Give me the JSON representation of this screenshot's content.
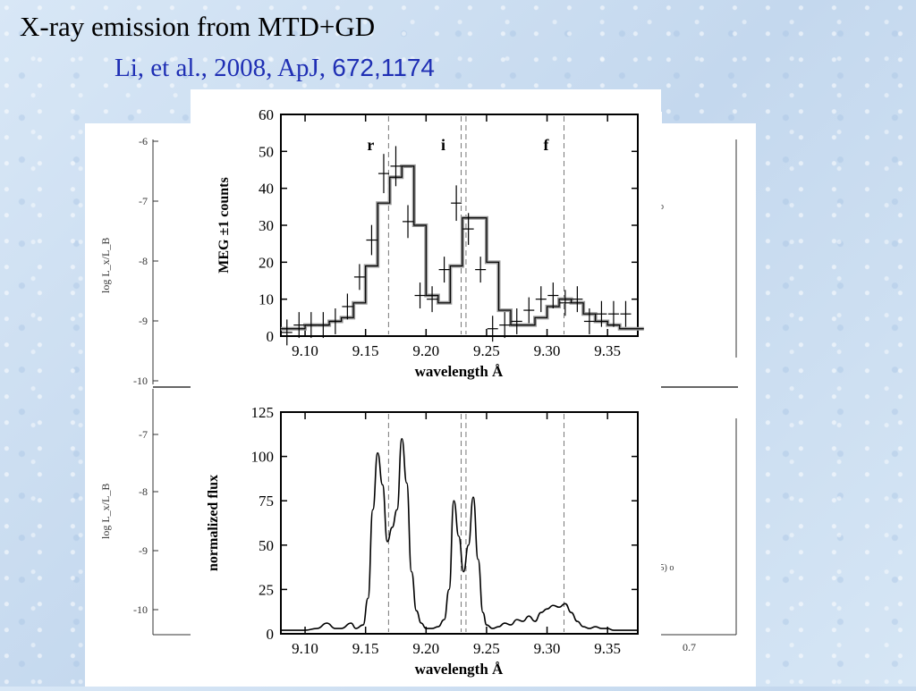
{
  "slide": {
    "title": "X-ray emission from MTD+GD",
    "citation_text": "Li, et al., 2008, ApJ, ",
    "citation_ref": "672,1174"
  },
  "colors": {
    "background": "#cfe0f2",
    "citation": "#1f2fb4",
    "model_line": "#999999",
    "data": "#000000"
  },
  "background_figure": {
    "panels": [
      {
        "ylabel": "log L_x/L_B",
        "yticks": [
          "-6",
          "-7",
          "-8",
          "-9",
          "-10"
        ]
      },
      {
        "ylabel": "log L_x/L_B",
        "yticks": [
          "-7",
          "-8",
          "-9",
          "-10"
        ]
      }
    ],
    "fragments": [
      "o",
      ".5)  o",
      "0.7"
    ]
  },
  "chart_data": [
    {
      "type": "line",
      "xlabel": "wavelength  Å",
      "ylabel": "MEG ±1 counts",
      "xlim": [
        9.08,
        9.375
      ],
      "ylim": [
        0,
        60
      ],
      "xticks": [
        "9.10",
        "9.15",
        "9.20",
        "9.25",
        "9.30",
        "9.35"
      ],
      "yticks": [
        "0",
        "10",
        "20",
        "30",
        "40",
        "50",
        "60"
      ],
      "line_markers": [
        {
          "label": "r",
          "x": 9.169
        },
        {
          "label": "i",
          "x": 9.229
        },
        {
          "label": "",
          "x": 9.233
        },
        {
          "label": "f",
          "x": 9.314
        }
      ],
      "series": [
        {
          "style": "model-histogram",
          "x": [
            9.08,
            9.09,
            9.1,
            9.11,
            9.12,
            9.13,
            9.14,
            9.15,
            9.16,
            9.17,
            9.18,
            9.19,
            9.2,
            9.21,
            9.22,
            9.23,
            9.24,
            9.25,
            9.26,
            9.27,
            9.28,
            9.29,
            9.3,
            9.31,
            9.32,
            9.33,
            9.34,
            9.35,
            9.36,
            9.37
          ],
          "y": [
            2,
            2,
            3,
            3,
            4,
            5,
            9,
            19,
            36,
            43,
            46,
            30,
            11,
            9,
            19,
            32,
            32,
            20,
            7,
            3,
            3,
            5,
            8,
            10,
            9,
            6,
            4,
            3,
            2,
            2
          ]
        },
        {
          "style": "data-points",
          "x": [
            9.085,
            9.095,
            9.105,
            9.115,
            9.125,
            9.135,
            9.145,
            9.155,
            9.165,
            9.175,
            9.185,
            9.195,
            9.205,
            9.215,
            9.225,
            9.235,
            9.245,
            9.255,
            9.265,
            9.275,
            9.285,
            9.295,
            9.305,
            9.315,
            9.325,
            9.335,
            9.345,
            9.355,
            9.365
          ],
          "y": [
            1,
            3,
            3,
            3,
            4,
            8,
            16,
            26,
            44,
            46,
            31,
            11,
            10,
            18,
            36,
            29,
            18,
            2,
            3,
            4,
            7,
            10,
            11,
            9,
            10,
            4,
            6,
            6,
            6
          ]
        }
      ]
    },
    {
      "type": "line",
      "xlabel": "wavelength  Å",
      "ylabel": "normalized flux",
      "xlim": [
        9.08,
        9.375
      ],
      "ylim": [
        0,
        125
      ],
      "xticks": [
        "9.10",
        "9.15",
        "9.20",
        "9.25",
        "9.30",
        "9.35"
      ],
      "yticks": [
        "0",
        "25",
        "50",
        "75",
        "100",
        "125"
      ],
      "line_markers": [
        {
          "label": "",
          "x": 9.169
        },
        {
          "label": "",
          "x": 9.229
        },
        {
          "label": "",
          "x": 9.233
        },
        {
          "label": "",
          "x": 9.314
        }
      ],
      "series": [
        {
          "style": "spectrum",
          "x": [
            9.08,
            9.1,
            9.11,
            9.118,
            9.125,
            9.13,
            9.138,
            9.142,
            9.148,
            9.152,
            9.156,
            9.16,
            9.164,
            9.168,
            9.172,
            9.176,
            9.18,
            9.184,
            9.188,
            9.192,
            9.196,
            9.2,
            9.205,
            9.21,
            9.215,
            9.219,
            9.223,
            9.227,
            9.231,
            9.235,
            9.239,
            9.243,
            9.247,
            9.25,
            9.255,
            9.26,
            9.265,
            9.27,
            9.275,
            9.28,
            9.285,
            9.29,
            9.295,
            9.3,
            9.305,
            9.31,
            9.315,
            9.32,
            9.325,
            9.33,
            9.335,
            9.34,
            9.345,
            9.35,
            9.355,
            9.36,
            9.365,
            9.375
          ],
          "y": [
            2,
            2,
            3,
            6,
            3,
            3,
            6,
            3,
            5,
            20,
            70,
            102,
            84,
            52,
            60,
            70,
            110,
            85,
            35,
            13,
            6,
            3,
            3,
            4,
            8,
            25,
            75,
            55,
            35,
            50,
            77,
            42,
            12,
            5,
            3,
            4,
            6,
            5,
            8,
            7,
            10,
            7,
            12,
            14,
            16,
            15,
            17,
            12,
            7,
            4,
            3,
            4,
            3,
            3,
            2,
            2,
            2,
            2
          ]
        }
      ]
    }
  ]
}
